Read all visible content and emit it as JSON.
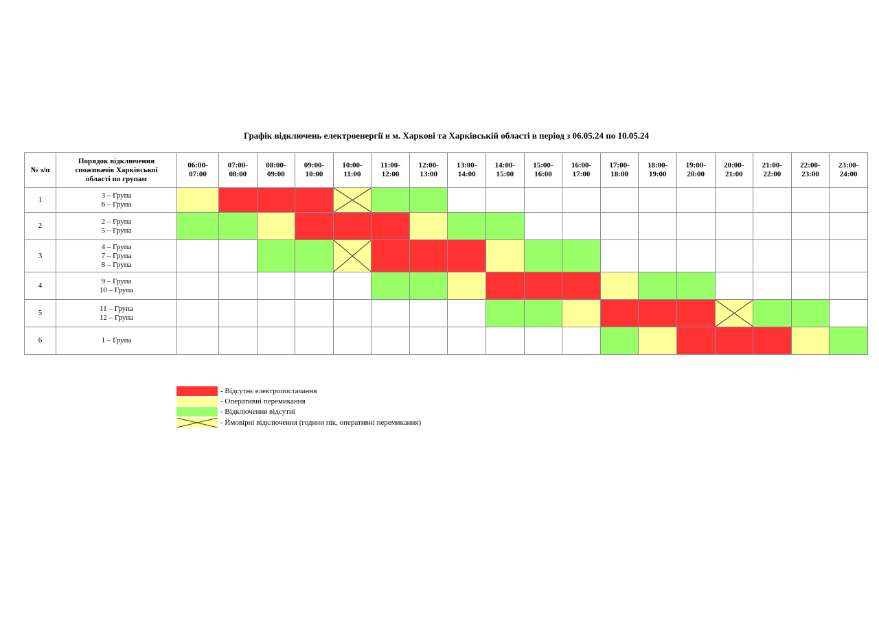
{
  "title": "Графік відключень електроенергії в м. Харкові та Харківській області в період з 06.05.24 по 10.05.24",
  "table": {
    "header": {
      "number": "№ з/п",
      "groups": [
        "Порядок відключення",
        "споживачів Харківської",
        "області по групам"
      ],
      "hours": [
        [
          "06:00-",
          "07:00"
        ],
        [
          "07:00-",
          "08:00"
        ],
        [
          "08:00-",
          "09:00"
        ],
        [
          "09:00-",
          "10:00"
        ],
        [
          "10:00-",
          "11:00"
        ],
        [
          "11:00-",
          "12:00"
        ],
        [
          "12:00-",
          "13:00"
        ],
        [
          "13:00-",
          "14:00"
        ],
        [
          "14:00-",
          "15:00"
        ],
        [
          "15:00-",
          "16:00"
        ],
        [
          "16:00-",
          "17:00"
        ],
        [
          "17:00-",
          "18:00"
        ],
        [
          "18:00-",
          "19:00"
        ],
        [
          "19:00-",
          "20:00"
        ],
        [
          "20:00-",
          "21:00"
        ],
        [
          "21:00-",
          "22:00"
        ],
        [
          "22:00-",
          "23:00"
        ],
        [
          "23:00-",
          "24:00"
        ]
      ]
    },
    "rows": [
      {
        "number": "1",
        "groups": [
          "3 – Група",
          "6 – Група"
        ],
        "cells": [
          1,
          0,
          0,
          0,
          3,
          2,
          2,
          null,
          null,
          null,
          null,
          null,
          null,
          null,
          null,
          null,
          null,
          null
        ]
      },
      {
        "number": "2",
        "groups": [
          "2 – Група",
          "5 – Група"
        ],
        "cells": [
          2,
          2,
          1,
          0,
          0,
          0,
          1,
          2,
          2,
          null,
          null,
          null,
          null,
          null,
          null,
          null,
          null,
          null
        ]
      },
      {
        "number": "3",
        "groups": [
          "4 – Група",
          "7 – Група",
          "8 – Група"
        ],
        "cells": [
          null,
          null,
          2,
          2,
          3,
          0,
          0,
          0,
          1,
          2,
          2,
          null,
          null,
          null,
          null,
          null,
          null,
          null
        ]
      },
      {
        "number": "4",
        "groups": [
          "9 – Група",
          "10 – Група"
        ],
        "cells": [
          null,
          null,
          null,
          null,
          null,
          2,
          2,
          1,
          0,
          0,
          0,
          1,
          2,
          2,
          null,
          null,
          null,
          null
        ]
      },
      {
        "number": "5",
        "groups": [
          "11 – Група",
          "12 – Група"
        ],
        "cells": [
          null,
          null,
          null,
          null,
          null,
          null,
          null,
          null,
          2,
          2,
          1,
          0,
          0,
          0,
          3,
          2,
          2,
          null
        ]
      },
      {
        "number": "6",
        "groups": [
          "1 – Група"
        ],
        "cells": [
          null,
          null,
          null,
          null,
          null,
          null,
          null,
          null,
          null,
          null,
          null,
          2,
          1,
          0,
          0,
          0,
          1,
          2
        ]
      }
    ]
  },
  "legend": [
    {
      "label": "- Відсутнє електропостачання",
      "color": "#ff3333",
      "cross": false
    },
    {
      "label": "- Оперативні перемикання",
      "color": "#ffff99",
      "cross": false
    },
    {
      "label": "- Відключення відсутні",
      "color": "#99ff66",
      "cross": false
    },
    {
      "label": "- Ймовірні відключення (години пік, оперативні перемикання)",
      "color": "#ffff99",
      "cross": true
    }
  ]
}
